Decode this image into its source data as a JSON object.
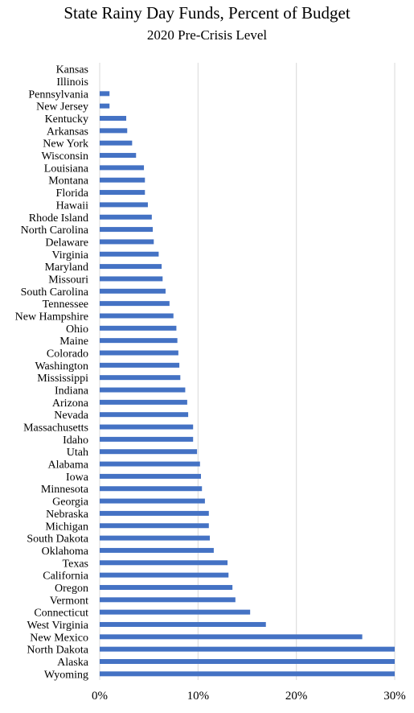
{
  "chart_data": {
    "type": "bar",
    "orientation": "horizontal",
    "title": "State Rainy Day Funds, Percent of Budget",
    "subtitle": "2020 Pre-Crisis Level",
    "xlabel": "",
    "ylabel": "",
    "xlim": [
      0,
      30
    ],
    "xticks": [
      0,
      10,
      20,
      30
    ],
    "xtick_labels": [
      "0%",
      "10%",
      "20%",
      "30%"
    ],
    "grid": "vertical",
    "bar_color": "#4472C4",
    "categories": [
      "Kansas",
      "Illinois",
      "Pennsylvania",
      "New Jersey",
      "Kentucky",
      "Arkansas",
      "New York",
      "Wisconsin",
      "Louisiana",
      "Montana",
      "Florida",
      "Hawaii",
      "Rhode Island",
      "North Carolina",
      "Delaware",
      "Virginia",
      "Maryland",
      "Missouri",
      "South Carolina",
      "Tennessee",
      "New Hampshire",
      "Ohio",
      "Maine",
      "Colorado",
      "Washington",
      "Mississippi",
      "Indiana",
      "Arizona",
      "Nevada",
      "Massachusetts",
      "Idaho",
      "Utah",
      "Alabama",
      "Iowa",
      "Minnesota",
      "Georgia",
      "Nebraska",
      "Michigan",
      "South Dakota",
      "Oklahoma",
      "Texas",
      "California",
      "Oregon",
      "Vermont",
      "Connecticut",
      "West Virginia",
      "New Mexico",
      "North Dakota",
      "Alaska",
      "Wyoming"
    ],
    "values": [
      0,
      0,
      1.0,
      1.0,
      2.7,
      2.8,
      3.3,
      3.7,
      4.5,
      4.6,
      4.6,
      4.9,
      5.3,
      5.4,
      5.5,
      6.0,
      6.3,
      6.4,
      6.7,
      7.1,
      7.5,
      7.8,
      7.9,
      8.0,
      8.1,
      8.2,
      8.7,
      8.9,
      9.0,
      9.5,
      9.5,
      9.9,
      10.2,
      10.3,
      10.4,
      10.7,
      11.1,
      11.1,
      11.2,
      11.6,
      13.0,
      13.1,
      13.5,
      13.8,
      15.3,
      16.9,
      26.7,
      30,
      30,
      30
    ]
  }
}
